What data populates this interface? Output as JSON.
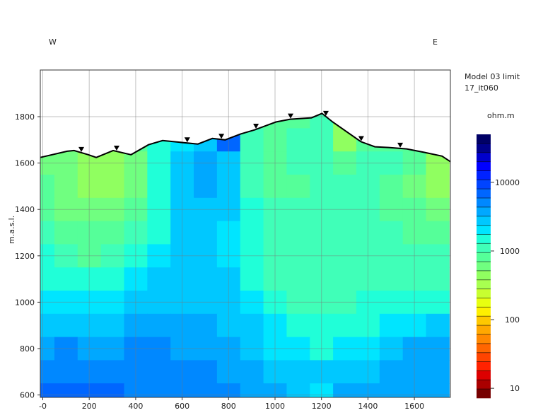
{
  "chart_data": {
    "type": "heatmap",
    "title": "",
    "direction_left": "W",
    "direction_right": "E",
    "xlabel": "",
    "ylabel": "m.a.s.l.",
    "xlim": [
      -10,
      1755
    ],
    "ylim": [
      588,
      2000
    ],
    "x_ticks": [
      0,
      200,
      400,
      600,
      800,
      1000,
      1200,
      1400,
      1600
    ],
    "x_tick_labels": [
      "-0",
      "200",
      "400",
      "600",
      "800",
      "1000",
      "1200",
      "1400",
      "1600"
    ],
    "y_ticks": [
      600,
      800,
      1000,
      1200,
      1400,
      1600,
      1800
    ],
    "y_tick_labels": [
      "600",
      "800",
      "1000",
      "1200",
      "1400",
      "1600",
      "1800"
    ],
    "grid": true,
    "colorbar": {
      "title_line1": "Model 03 limit",
      "title_line2": "17_it060",
      "unit": "ohm.m",
      "scale": "log",
      "range": [
        7.2,
        50000
      ],
      "ticks": [
        10,
        100,
        1000,
        10000
      ],
      "tick_labels": [
        "10",
        "100",
        "1000",
        "10000"
      ],
      "colors": [
        "#000066",
        "#00008b",
        "#0000cc",
        "#0000ff",
        "#0022ff",
        "#0044ff",
        "#0066ff",
        "#0088ff",
        "#00a8ff",
        "#00c8ff",
        "#00e5ff",
        "#20ffd8",
        "#40ffb8",
        "#55ff99",
        "#70ff80",
        "#90ff60",
        "#a8ff50",
        "#c8ff30",
        "#e8ff10",
        "#fff000",
        "#ffc800",
        "#ffa800",
        "#ff8800",
        "#ff6600",
        "#ff4400",
        "#ff2200",
        "#dd0000",
        "#aa0000",
        "#770000"
      ]
    },
    "cell_x_centers": [
      0,
      100,
      200,
      300,
      400,
      500,
      600,
      700,
      800,
      900,
      1000,
      1100,
      1200,
      1300,
      1400,
      1500,
      1600,
      1700
    ],
    "cell_y_centers": [
      1800,
      1700,
      1600,
      1500,
      1400,
      1300,
      1200,
      1100,
      1000,
      900,
      800,
      700,
      600
    ],
    "resistivity": [
      [
        900,
        900,
        900,
        900,
        900,
        900,
        900,
        900,
        900,
        900,
        700,
        900,
        1200,
        500,
        900,
        900,
        900,
        900
      ],
      [
        500,
        500,
        500,
        500,
        700,
        1500,
        2200,
        3000,
        6000,
        1200,
        900,
        1200,
        1100,
        500,
        700,
        800,
        700,
        500
      ],
      [
        600,
        600,
        500,
        450,
        600,
        1500,
        2500,
        3500,
        2500,
        1000,
        900,
        1100,
        1000,
        800,
        1000,
        1000,
        700,
        500
      ],
      [
        700,
        600,
        500,
        400,
        600,
        1500,
        2500,
        4000,
        2500,
        1200,
        800,
        700,
        1000,
        1000,
        1000,
        900,
        600,
        500
      ],
      [
        800,
        600,
        550,
        550,
        800,
        1500,
        2500,
        2500,
        2500,
        1300,
        1000,
        1000,
        1000,
        1000,
        1000,
        900,
        700,
        600
      ],
      [
        1100,
        800,
        700,
        800,
        1000,
        1500,
        2500,
        2500,
        2000,
        1500,
        1000,
        1000,
        1000,
        1000,
        1000,
        1000,
        900,
        900
      ],
      [
        1500,
        1000,
        900,
        1000,
        1300,
        2000,
        2500,
        2500,
        2000,
        1500,
        1000,
        1000,
        1000,
        1000,
        1000,
        1000,
        1000,
        1000
      ],
      [
        1600,
        1500,
        1500,
        1500,
        2000,
        2500,
        2500,
        2500,
        2500,
        1600,
        1100,
        1000,
        1000,
        1000,
        1000,
        1200,
        1200,
        1200
      ],
      [
        2200,
        2000,
        2000,
        2000,
        2500,
        2500,
        3000,
        2500,
        2500,
        2000,
        1500,
        1100,
        1000,
        1100,
        1500,
        1500,
        1500,
        1500
      ],
      [
        3000,
        3000,
        3000,
        3000,
        3500,
        3500,
        3500,
        3500,
        3000,
        2500,
        1800,
        1500,
        1500,
        1500,
        1600,
        2000,
        2200,
        2500
      ],
      [
        4000,
        5000,
        4000,
        4000,
        5000,
        5000,
        4000,
        4000,
        3500,
        2500,
        2200,
        2000,
        1500,
        2000,
        2200,
        2500,
        3500,
        3500
      ],
      [
        5500,
        5500,
        5500,
        5500,
        5500,
        5500,
        5500,
        5000,
        4000,
        3500,
        3000,
        2500,
        2500,
        2500,
        3000,
        3500,
        4000,
        4000
      ],
      [
        6000,
        6000,
        6000,
        6000,
        5500,
        5500,
        5500,
        5500,
        5000,
        3500,
        3500,
        3000,
        2200,
        3500,
        3500,
        3500,
        3500,
        4000
      ]
    ],
    "topography": [
      [
        -11,
        1624
      ],
      [
        105,
        1651
      ],
      [
        135,
        1654
      ],
      [
        196,
        1636
      ],
      [
        230,
        1624
      ],
      [
        303,
        1654
      ],
      [
        380,
        1636
      ],
      [
        455,
        1679
      ],
      [
        516,
        1697
      ],
      [
        577,
        1691
      ],
      [
        668,
        1682
      ],
      [
        730,
        1706
      ],
      [
        785,
        1700
      ],
      [
        851,
        1725
      ],
      [
        912,
        1743
      ],
      [
        1004,
        1777
      ],
      [
        1065,
        1789
      ],
      [
        1157,
        1795
      ],
      [
        1202,
        1814
      ],
      [
        1248,
        1777
      ],
      [
        1370,
        1692
      ],
      [
        1430,
        1670
      ],
      [
        1490,
        1667
      ],
      [
        1567,
        1661
      ],
      [
        1643,
        1646
      ],
      [
        1719,
        1630
      ],
      [
        1755,
        1606
      ]
    ],
    "electrodes_x": [
      166,
      318,
      622,
      769,
      918,
      1067,
      1219,
      1371,
      1539
    ]
  }
}
